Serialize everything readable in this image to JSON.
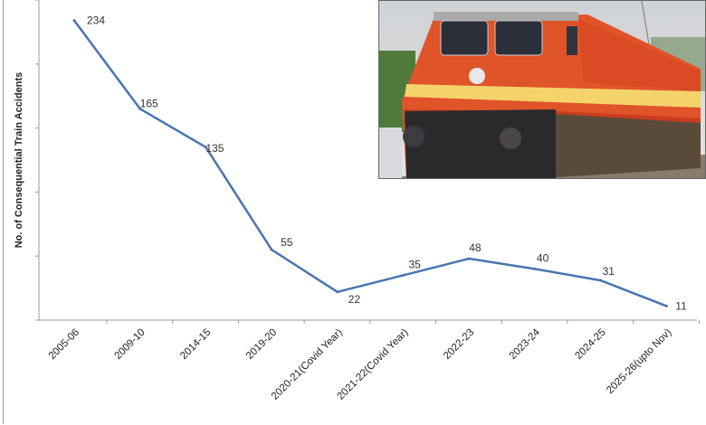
{
  "chart_data": {
    "type": "line",
    "title": "",
    "xlabel": "",
    "ylabel": "No. of Consequential Train Accidents",
    "categories": [
      "2005-06",
      "2009-10",
      "2014-15",
      "2019-20",
      "2020-21(Covid Year)",
      "2021-22(Covid Year)",
      "2022-23",
      "2023-24",
      "2024-25",
      "2025-26(upto Nov)"
    ],
    "series": [
      {
        "values": [
          234,
          165,
          135,
          55,
          22,
          35,
          48,
          40,
          31,
          11
        ]
      }
    ],
    "ylim": [
      0,
      250
    ],
    "y_ticks": [
      0,
      50,
      100,
      150,
      200,
      250
    ],
    "y_tick_labels_shown": false,
    "grid": false,
    "legend": "none",
    "line_color": "#4a74b0"
  },
  "image": {
    "subject": "train-locomotive-photo"
  }
}
